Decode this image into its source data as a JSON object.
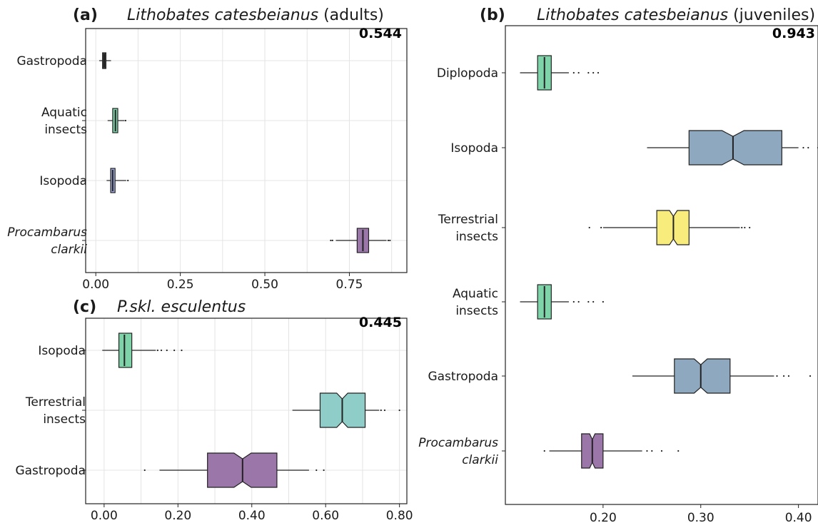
{
  "chart_data": [
    {
      "id": "a",
      "type": "box",
      "panel_label": "(a)",
      "title": "Lithobates catesbeianus (adults)",
      "title_italic": "Lithobates catesbeianus",
      "title_rest": " (adults)",
      "annotation": "0.544",
      "orientation": "horizontal",
      "xlim": [
        -0.03,
        0.92
      ],
      "xticks": [
        0.0,
        0.25,
        0.5,
        0.75
      ],
      "xtick_labels": [
        "0.00",
        "0.25",
        "0.50",
        "0.75"
      ],
      "grid": true,
      "categories": [
        {
          "label_lines": [
            "Gastropoda"
          ],
          "italic": false,
          "color": "#3a3a3a",
          "whisker_low": 0.01,
          "q1": 0.02,
          "median": 0.025,
          "q3": 0.03,
          "whisker_high": 0.045,
          "outliers": []
        },
        {
          "label_lines": [
            "Aquatic",
            "insects"
          ],
          "italic": false,
          "color": "#7fd3a9",
          "whisker_low": 0.035,
          "q1": 0.05,
          "median": 0.058,
          "q3": 0.065,
          "whisker_high": 0.085,
          "outliers": [
            0.088
          ]
        },
        {
          "label_lines": [
            "Isopoda"
          ],
          "italic": false,
          "color": "#9ba6d9",
          "whisker_low": 0.032,
          "q1": 0.044,
          "median": 0.05,
          "q3": 0.057,
          "whisker_high": 0.09,
          "outliers": [
            0.095
          ]
        },
        {
          "label_lines": [
            "Procambarus",
            "clarkii"
          ],
          "italic": true,
          "color": "#9b76a8",
          "whisker_low": 0.71,
          "q1": 0.773,
          "median": 0.79,
          "q3": 0.807,
          "whisker_high": 0.86,
          "outliers": [
            0.695,
            0.7,
            0.865,
            0.87
          ]
        }
      ]
    },
    {
      "id": "b",
      "type": "box",
      "panel_label": "(b)",
      "title": "Lithobates catesbeianus (juveniles)",
      "title_italic": "Lithobates catesbeianus",
      "title_rest": " (juveniles)",
      "annotation": "0.943",
      "orientation": "horizontal",
      "xlim": [
        0.1,
        0.42
      ],
      "xticks": [
        0.2,
        0.3,
        0.4
      ],
      "xtick_labels": [
        "0.20",
        "0.30",
        "0.40"
      ],
      "grid": false,
      "categories": [
        {
          "label_lines": [
            "Diplopoda"
          ],
          "italic": false,
          "color": "#7fd3a9",
          "whisker_low": 0.115,
          "q1": 0.133,
          "median": 0.14,
          "q3": 0.147,
          "whisker_high": 0.165,
          "outliers": [
            0.17,
            0.175,
            0.185,
            0.19,
            0.195
          ]
        },
        {
          "label_lines": [
            "Isopoda"
          ],
          "italic": false,
          "color": "#8ea9bf",
          "whisker_low": 0.245,
          "q1": 0.288,
          "median": 0.333,
          "q3": 0.383,
          "whisker_high": 0.4,
          "outliers": [
            0.405,
            0.41,
            0.42
          ]
        },
        {
          "label_lines": [
            "Terrestrial",
            "insects"
          ],
          "italic": false,
          "color": "#f8ec7c",
          "whisker_low": 0.2,
          "q1": 0.255,
          "median": 0.272,
          "q3": 0.288,
          "whisker_high": 0.34,
          "outliers": [
            0.186,
            0.198,
            0.342,
            0.345,
            0.35
          ]
        },
        {
          "label_lines": [
            "Aquatic",
            "insects"
          ],
          "italic": false,
          "color": "#7fd3a9",
          "whisker_low": 0.115,
          "q1": 0.133,
          "median": 0.14,
          "q3": 0.147,
          "whisker_high": 0.165,
          "outliers": [
            0.17,
            0.175,
            0.185,
            0.19,
            0.2
          ]
        },
        {
          "label_lines": [
            "Gastropoda"
          ],
          "italic": false,
          "color": "#8ea9bf",
          "whisker_low": 0.23,
          "q1": 0.273,
          "median": 0.3,
          "q3": 0.33,
          "whisker_high": 0.375,
          "outliers": [
            0.378,
            0.385,
            0.39,
            0.412
          ]
        },
        {
          "label_lines": [
            "Procambarus",
            "clarkii"
          ],
          "italic": true,
          "color": "#9b76a8",
          "whisker_low": 0.145,
          "q1": 0.178,
          "median": 0.189,
          "q3": 0.2,
          "whisker_high": 0.24,
          "outliers": [
            0.14,
            0.245,
            0.25,
            0.26,
            0.277
          ]
        }
      ]
    },
    {
      "id": "c",
      "type": "box",
      "panel_label": "(c)",
      "title": "P.skl. esculentus",
      "title_italic": "P.skl. esculentus",
      "title_rest": "",
      "annotation": "0.445",
      "orientation": "horizontal",
      "xlim": [
        -0.05,
        0.82
      ],
      "xticks": [
        0.0,
        0.2,
        0.4,
        0.6,
        0.8
      ],
      "xtick_labels": [
        "0.00",
        "0.20",
        "0.40",
        "0.60",
        "0.80"
      ],
      "grid": true,
      "categories": [
        {
          "label_lines": [
            "Isopoda"
          ],
          "italic": false,
          "color": "#7fd3a9",
          "whisker_low": -0.005,
          "q1": 0.04,
          "median": 0.055,
          "q3": 0.075,
          "whisker_high": 0.14,
          "outliers": [
            0.145,
            0.155,
            0.17,
            0.19,
            0.21
          ]
        },
        {
          "label_lines": [
            "Terrestrial",
            "insects"
          ],
          "italic": false,
          "color": "#8fcdc8",
          "whisker_low": 0.51,
          "q1": 0.585,
          "median": 0.645,
          "q3": 0.707,
          "whisker_high": 0.745,
          "outliers": [
            0.75,
            0.76,
            0.8
          ]
        },
        {
          "label_lines": [
            "Gastropoda"
          ],
          "italic": false,
          "color": "#9b76a8",
          "whisker_low": 0.15,
          "q1": 0.28,
          "median": 0.375,
          "q3": 0.468,
          "whisker_high": 0.555,
          "outliers": [
            0.11,
            0.575,
            0.595
          ]
        }
      ]
    }
  ]
}
